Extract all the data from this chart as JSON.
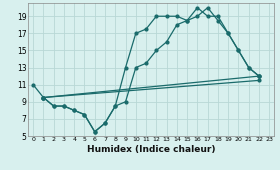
{
  "xlabel": "Humidex (Indice chaleur)",
  "background_color": "#d8f0ee",
  "grid_color": "#b8d8d6",
  "line_color": "#1a6b6b",
  "xlim": [
    -0.5,
    23.5
  ],
  "ylim": [
    5,
    20.5
  ],
  "yticks": [
    5,
    7,
    9,
    11,
    13,
    15,
    17,
    19
  ],
  "xticks": [
    0,
    1,
    2,
    3,
    4,
    5,
    6,
    7,
    8,
    9,
    10,
    11,
    12,
    13,
    14,
    15,
    16,
    17,
    18,
    19,
    20,
    21,
    22,
    23
  ],
  "line1_x": [
    0,
    1,
    2,
    3,
    4,
    5,
    6,
    7,
    8,
    9,
    10,
    11,
    12,
    13,
    14,
    15,
    16,
    17,
    18,
    19,
    20,
    21,
    22
  ],
  "line1_y": [
    11,
    9.5,
    8.5,
    8.5,
    8.0,
    7.5,
    5.5,
    6.5,
    8.5,
    13.0,
    17.0,
    17.5,
    19.0,
    19.0,
    19.0,
    18.5,
    20.0,
    19.0,
    19.0,
    17.0,
    15.0,
    13.0,
    12.0
  ],
  "line2_x": [
    1,
    2,
    3,
    4,
    5,
    6,
    7,
    8,
    9,
    10,
    11,
    12,
    13,
    14,
    15,
    16,
    17,
    18,
    19,
    20,
    21,
    22
  ],
  "line2_y": [
    9.5,
    8.5,
    8.5,
    8.0,
    7.5,
    5.5,
    6.5,
    8.5,
    9.0,
    13.0,
    13.5,
    15.0,
    16.0,
    18.0,
    18.5,
    19.0,
    20.0,
    18.5,
    17.0,
    15.0,
    13.0,
    12.0
  ],
  "line3_x": [
    1,
    22
  ],
  "line3_y": [
    9.5,
    12.0
  ],
  "line4_x": [
    1,
    22
  ],
  "line4_y": [
    9.5,
    11.5
  ]
}
